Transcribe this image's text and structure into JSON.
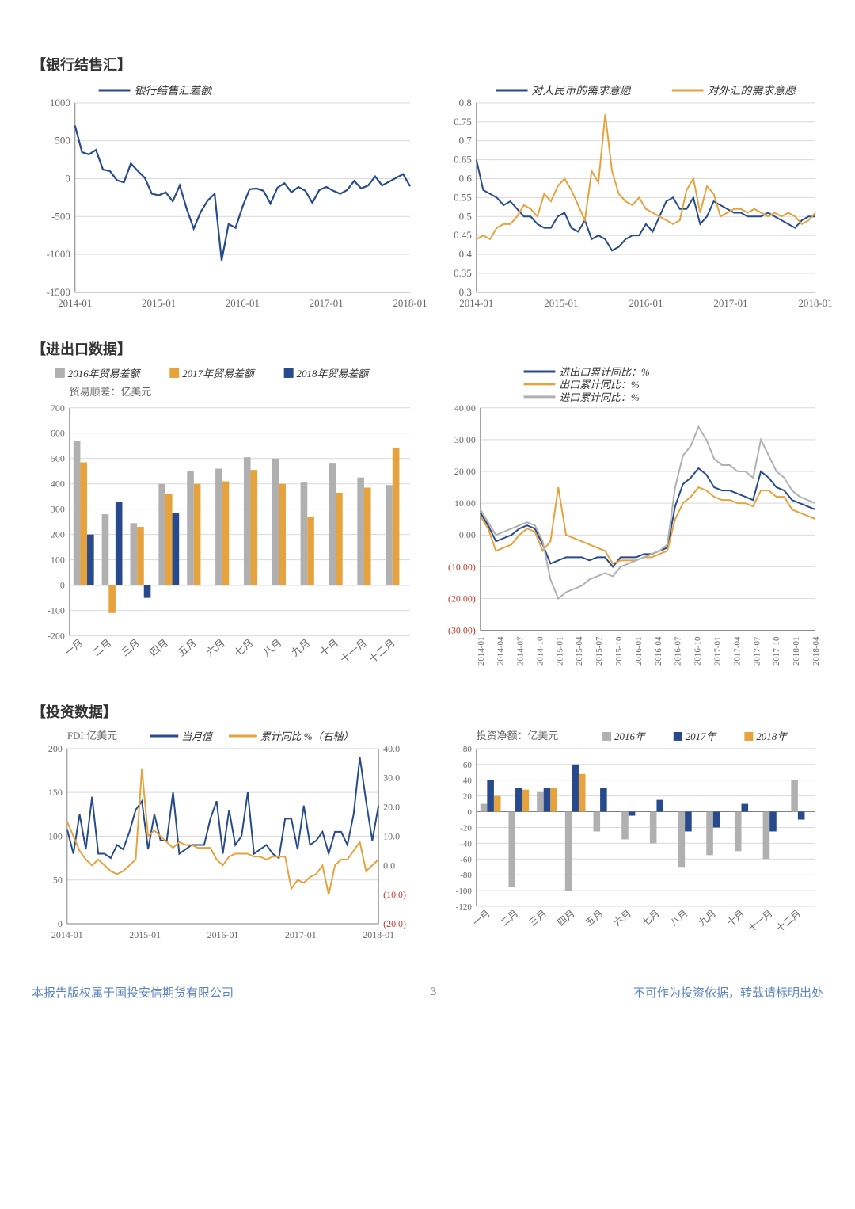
{
  "colors": {
    "blue": "#264a8c",
    "orange": "#e6a23c",
    "gray": "#b0b0b0",
    "red": "#c0392b",
    "grid": "#d9d9d9",
    "axis": "#808080",
    "text": "#666666",
    "bg": "#ffffff"
  },
  "section1": {
    "title": "【银行结售汇】"
  },
  "section2": {
    "title": "【进出口数据】"
  },
  "section3": {
    "title": "【投资数据】"
  },
  "footer": {
    "left": "本报告版权属于国投安信期货有限公司",
    "page": "3",
    "right": "不可作为投资依据，转载请标明出处"
  },
  "chart1L": {
    "legend": [
      "银行结售汇差额"
    ],
    "ylim": [
      -1500,
      1000
    ],
    "ytick_step": 500,
    "xticks": [
      "2014-01",
      "2015-01",
      "2016-01",
      "2017-01",
      "2018-01"
    ],
    "line_width": 2.2,
    "series": {
      "diff": [
        700,
        350,
        320,
        380,
        120,
        100,
        -20,
        -50,
        200,
        100,
        10,
        -200,
        -220,
        -180,
        -300,
        -90,
        -400,
        -660,
        -440,
        -290,
        -200,
        -1080,
        -600,
        -650,
        -370,
        -140,
        -130,
        -160,
        -330,
        -120,
        -60,
        -180,
        -110,
        -160,
        -320,
        -150,
        -110,
        -160,
        -200,
        -150,
        -30,
        -130,
        -90,
        30,
        -90,
        -40,
        10,
        60,
        -100
      ]
    },
    "line_colors": {
      "diff": "#264a8c"
    }
  },
  "chart1R": {
    "legend": [
      "对人民币的需求意愿",
      "对外汇的需求意愿"
    ],
    "ylim": [
      0.3,
      0.8
    ],
    "ytick_step": 0.05,
    "xticks": [
      "2014-01",
      "2015-01",
      "2016-01",
      "2017-01",
      "2018-01"
    ],
    "line_width": 2,
    "series": {
      "rmb": [
        0.65,
        0.57,
        0.56,
        0.55,
        0.53,
        0.54,
        0.52,
        0.5,
        0.5,
        0.48,
        0.47,
        0.47,
        0.5,
        0.51,
        0.47,
        0.46,
        0.49,
        0.44,
        0.45,
        0.44,
        0.41,
        0.42,
        0.44,
        0.45,
        0.45,
        0.48,
        0.46,
        0.5,
        0.54,
        0.55,
        0.52,
        0.52,
        0.55,
        0.48,
        0.5,
        0.54,
        0.53,
        0.52,
        0.51,
        0.51,
        0.5,
        0.5,
        0.5,
        0.51,
        0.5,
        0.49,
        0.48,
        0.47,
        0.49,
        0.5,
        0.5
      ],
      "fx": [
        0.44,
        0.45,
        0.44,
        0.47,
        0.48,
        0.48,
        0.5,
        0.53,
        0.52,
        0.5,
        0.56,
        0.54,
        0.58,
        0.6,
        0.57,
        0.53,
        0.49,
        0.62,
        0.59,
        0.77,
        0.62,
        0.56,
        0.54,
        0.53,
        0.55,
        0.52,
        0.51,
        0.5,
        0.49,
        0.48,
        0.49,
        0.57,
        0.6,
        0.51,
        0.58,
        0.56,
        0.5,
        0.51,
        0.52,
        0.52,
        0.51,
        0.52,
        0.51,
        0.5,
        0.51,
        0.5,
        0.51,
        0.5,
        0.48,
        0.49,
        0.51
      ]
    },
    "line_colors": {
      "rmb": "#264a8c",
      "fx": "#e6a23c"
    }
  },
  "chart2L": {
    "legend": [
      "2016年贸易差额",
      "2017年贸易差额",
      "2018年贸易差额"
    ],
    "y_label": "贸易顺差：亿美元",
    "ylim": [
      -200,
      700
    ],
    "ytick_step": 100,
    "categories": [
      "一月",
      "二月",
      "三月",
      "四月",
      "五月",
      "六月",
      "七月",
      "八月",
      "九月",
      "十月",
      "十一月",
      "十二月"
    ],
    "bar_colors": [
      "#b0b0b0",
      "#e6a23c",
      "#264a8c"
    ],
    "bar_width": 0.24,
    "data": {
      "2016": [
        570,
        280,
        245,
        400,
        450,
        460,
        505,
        500,
        405,
        480,
        425,
        395
      ],
      "2017": [
        485,
        -110,
        230,
        360,
        400,
        410,
        455,
        400,
        270,
        365,
        385,
        540
      ],
      "2018": [
        200,
        330,
        -50,
        285,
        null,
        null,
        null,
        null,
        null,
        null,
        null,
        null
      ]
    }
  },
  "chart2R": {
    "legend": [
      "进出口累计同比：%",
      "出口累计同比：%",
      "进口累计同比：%"
    ],
    "ylim": [
      -30,
      40
    ],
    "ytick_step": 10,
    "neg_paren": true,
    "xticks": [
      "2014-01",
      "2014-04",
      "2014-07",
      "2014-10",
      "2015-01",
      "2015-04",
      "2015-07",
      "2015-10",
      "2016-01",
      "2016-04",
      "2016-07",
      "2016-10",
      "2017-01",
      "2017-04",
      "2017-07",
      "2017-10",
      "2018-01",
      "2018-04"
    ],
    "line_width": 2,
    "series": {
      "total": [
        7,
        3,
        -2,
        -1,
        0,
        2,
        3,
        2,
        -3,
        -9,
        -8,
        -7,
        -7,
        -7,
        -8,
        -7,
        -7,
        -10,
        -7,
        -7,
        -7,
        -6,
        -6,
        -5,
        -4,
        9,
        16,
        18,
        21,
        19,
        15,
        14,
        14,
        13,
        12,
        11,
        20,
        18,
        15,
        14,
        11,
        10,
        9,
        8
      ],
      "export": [
        6,
        2,
        -5,
        -4,
        -3,
        0,
        2,
        1,
        -5,
        -2,
        15,
        0,
        -1,
        -2,
        -3,
        -4,
        -5,
        -9,
        -8,
        -8,
        -8,
        -7,
        -7,
        -6,
        -5,
        5,
        10,
        12,
        15,
        14,
        12,
        11,
        11,
        10,
        10,
        9,
        14,
        14,
        12,
        12,
        8,
        7,
        6,
        5
      ],
      "import": [
        8,
        4,
        0,
        1,
        2,
        3,
        4,
        3,
        -2,
        -14,
        -20,
        -18,
        -17,
        -16,
        -14,
        -13,
        -12,
        -13,
        -10,
        -9,
        -8,
        -7,
        -6,
        -5,
        -3,
        15,
        25,
        28,
        34,
        30,
        24,
        22,
        22,
        20,
        20,
        18,
        30,
        25,
        20,
        18,
        14,
        12,
        11,
        10
      ]
    },
    "line_colors": {
      "total": "#264a8c",
      "export": "#e6a23c",
      "import": "#b0b0b0"
    }
  },
  "chart3L": {
    "y_label": "FDI:亿美元",
    "legend": [
      "当月值",
      "累计同比 %（右轴）"
    ],
    "ylimL": [
      0,
      200
    ],
    "ytick_stepL": 50,
    "ylimR": [
      -20,
      40
    ],
    "ytick_stepR": 10,
    "neg_paren_right": true,
    "xticks": [
      "2014-01",
      "2015-01",
      "2016-01",
      "2017-01",
      "2018-01"
    ],
    "line_width": 2,
    "series": {
      "value": [
        108,
        80,
        125,
        85,
        145,
        80,
        80,
        75,
        90,
        85,
        105,
        130,
        140,
        85,
        125,
        95,
        95,
        150,
        80,
        85,
        90,
        90,
        90,
        120,
        140,
        80,
        130,
        90,
        100,
        150,
        80,
        85,
        90,
        80,
        75,
        120,
        120,
        85,
        135,
        90,
        95,
        105,
        80,
        105,
        105,
        90,
        125,
        190,
        140,
        95,
        135
      ],
      "yoy": [
        15,
        10,
        5,
        2,
        0,
        2,
        0,
        -2,
        -3,
        -2,
        0,
        2,
        33,
        10,
        12,
        10,
        8,
        6,
        8,
        7,
        7,
        6,
        6,
        6,
        2,
        0,
        3,
        4,
        4,
        4,
        3,
        3,
        2,
        3,
        3,
        3,
        -8,
        -5,
        -6,
        -4,
        -3,
        0,
        -10,
        0,
        2,
        2,
        5,
        8,
        -2,
        0,
        2
      ]
    },
    "line_colors": {
      "value": "#264a8c",
      "yoy": "#e6a23c"
    }
  },
  "chart3R": {
    "y_label": "投资净额：亿美元",
    "legend": [
      "2016年",
      "2017年",
      "2018年"
    ],
    "ylim": [
      -120,
      80
    ],
    "yticks": [
      -120,
      -100,
      -80,
      -60,
      -40,
      -20,
      0,
      20,
      40,
      60,
      80
    ],
    "categories": [
      "一月",
      "二月",
      "三月",
      "四月",
      "五月",
      "六月",
      "七月",
      "八月",
      "九月",
      "十月",
      "十一月",
      "十二月"
    ],
    "bar_colors": [
      "#b0b0b0",
      "#264a8c",
      "#e6a23c"
    ],
    "bar_width": 0.24,
    "data": {
      "2016": [
        10,
        -95,
        25,
        -100,
        -25,
        -35,
        -40,
        -70,
        -55,
        -50,
        -60,
        40
      ],
      "2017": [
        40,
        30,
        30,
        60,
        30,
        -5,
        15,
        -25,
        -20,
        10,
        -25,
        -10
      ],
      "2018": [
        20,
        28,
        30,
        48,
        null,
        null,
        null,
        null,
        null,
        null,
        null,
        null
      ]
    }
  }
}
